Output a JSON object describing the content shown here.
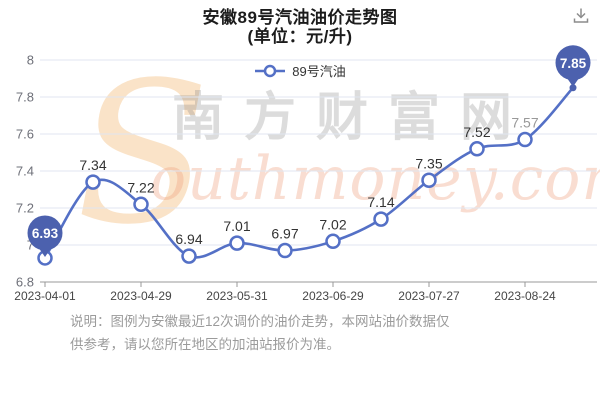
{
  "header": {
    "title": "安徽89号汽油油价走势图",
    "subtitle": "(单位：元/升)"
  },
  "toolbar": {
    "download_icon": "download-icon"
  },
  "legend": {
    "label": "89号汽油"
  },
  "chart_data": {
    "type": "line",
    "title": "安徽89号汽油油价走势图",
    "unit": "元/升",
    "series_name": "89号汽油",
    "smooth": true,
    "grid": true,
    "legend_position": "top",
    "x_tick_labels": [
      "2023-04-01",
      "2023-04-29",
      "2023-05-31",
      "2023-06-29",
      "2023-07-27",
      "2023-08-24"
    ],
    "x_tick_point_indices": [
      0,
      2,
      4,
      6,
      8,
      10
    ],
    "values": [
      6.93,
      7.34,
      7.22,
      6.94,
      7.01,
      6.97,
      7.02,
      7.14,
      7.35,
      7.52,
      7.57,
      7.85
    ],
    "ylim": [
      6.8,
      8.0
    ],
    "y_tick_step": 0.2,
    "line_color": "#5470c6",
    "marker": "open-circle",
    "marker_fill": "#ffffff",
    "label_color": "#333333",
    "muted_label_indices": [
      10
    ],
    "muted_label_color": "#999999",
    "axis_line_color": "#999999",
    "grid_line_color": "#e0e6f1",
    "y_label_color": "#6e7079",
    "x_label_color": "#464646",
    "marked_points": [
      {
        "index": 0,
        "value": 6.93,
        "label": "6.93"
      },
      {
        "index": 11,
        "value": 7.85,
        "label": "7.85"
      }
    ],
    "marked_point_color": "#4c61ae",
    "marked_point_text_color": "#ffffff"
  },
  "watermark": {
    "s": "S",
    "cn": "南方财富网",
    "en": "outhmoney.com"
  },
  "note": {
    "line1": "说明：图例为安徽最近12次调价的油价走势，本网站油价数据仅",
    "line2": "供参考，请以您所在地区的加油站报价为准。"
  }
}
